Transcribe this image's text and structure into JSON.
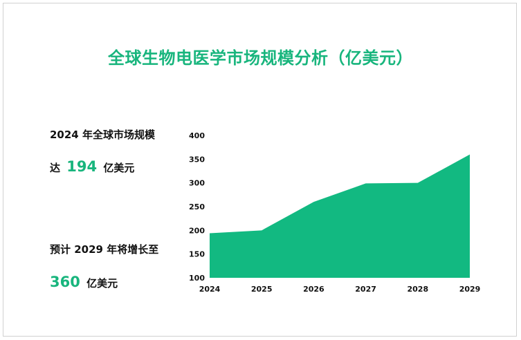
{
  "title": "全球生物电医学市场规模分析（亿美元）",
  "stats": {
    "line1": "2024 年全球市场规模",
    "line2_prefix": "达",
    "line2_value": "194",
    "line2_unit": "亿美元",
    "line3": "预计 2029 年将增长至",
    "line4_value": "360",
    "line4_unit": "亿美元"
  },
  "colors": {
    "accent": "#18b57d",
    "area": "#12b981"
  },
  "chart_data": {
    "type": "area",
    "title": "",
    "xlabel": "",
    "ylabel": "",
    "categories": [
      "2024",
      "2025",
      "2026",
      "2027",
      "2028",
      "2029"
    ],
    "values": [
      194,
      200,
      260,
      299,
      300,
      360
    ],
    "ylim": [
      100,
      400
    ],
    "yticks": [
      100,
      150,
      200,
      250,
      300,
      350,
      400
    ],
    "grid": false,
    "legend": "none"
  }
}
